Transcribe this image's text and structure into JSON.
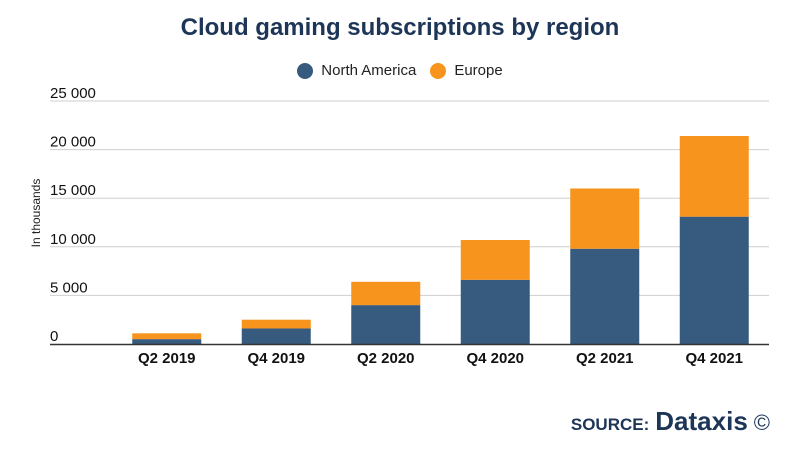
{
  "chart_data": {
    "type": "bar",
    "stacked": true,
    "title": "Cloud gaming subscriptions by region",
    "ylabel": "In thousands",
    "xlabel": "",
    "ylim": [
      0,
      25000
    ],
    "yticks": [
      0,
      5000,
      10000,
      15000,
      20000,
      25000
    ],
    "ytick_labels": [
      "0",
      "5 000",
      "10 000",
      "15 000",
      "20 000",
      "25 000"
    ],
    "grid": true,
    "legend_position": "top-center",
    "categories": [
      "Q2 2019",
      "Q4 2019",
      "Q2 2020",
      "Q4 2020",
      "Q2 2021",
      "Q4 2021"
    ],
    "series": [
      {
        "name": "North America",
        "color": "#375a7f",
        "values": [
          500,
          1600,
          4000,
          6600,
          9800,
          13100
        ]
      },
      {
        "name": "Europe",
        "color": "#f7941d",
        "values": [
          600,
          900,
          2400,
          4100,
          6200,
          8300
        ]
      }
    ]
  },
  "source": {
    "label": "SOURCE:",
    "brand": "Dataxis",
    "icon": "copyright-icon",
    "icon_glyph": "©"
  }
}
